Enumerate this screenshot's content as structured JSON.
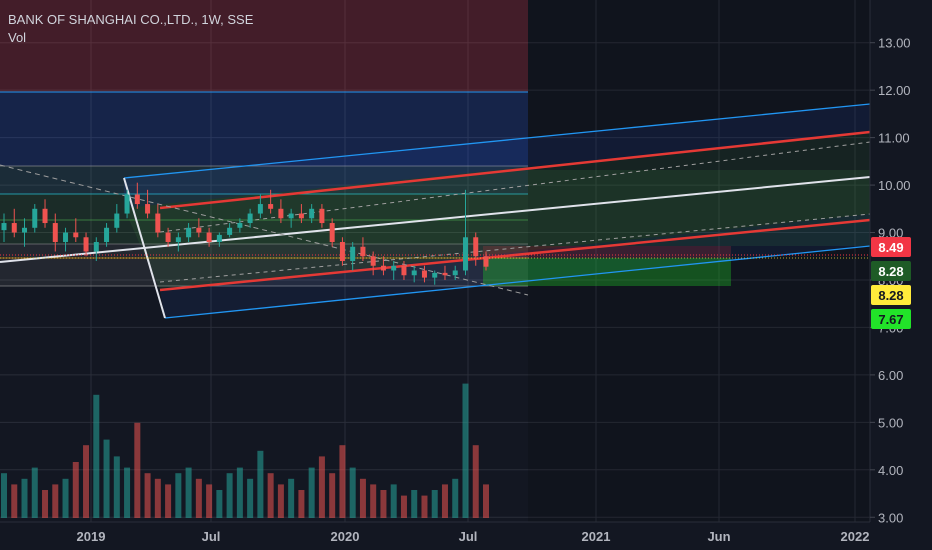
{
  "legend": {
    "title": "BANK OF SHANGHAI CO.,LTD., 1W, SSE",
    "indicator": "Vol"
  },
  "colors": {
    "background": "#131722",
    "grid": "#2a2e39",
    "up": "#26a69a",
    "down": "#ef5350",
    "text": "#b2b5be",
    "channel_blue": "#2962ff",
    "channel_red": "#e53935"
  },
  "chart_data": {
    "type": "candlestick",
    "symbol": "BANK OF SHANGHAI CO.,LTD.",
    "interval": "1W",
    "exchange": "SSE",
    "ylim": [
      2.9,
      13.9
    ],
    "x_ticks": [
      "2019",
      "Jul",
      "2020",
      "Jul",
      "2021",
      "Jun",
      "2022"
    ],
    "y_ticks": [
      "3.00",
      "4.00",
      "5.00",
      "6.00",
      "7.00",
      "8.00",
      "9.00",
      "10.00",
      "11.00",
      "12.00",
      "13.00"
    ],
    "price_tags": [
      {
        "label": "8.49",
        "value": 8.49,
        "bg": "#f23645",
        "fg": "#ffffff"
      },
      {
        "label": "8.28",
        "value": 8.28,
        "bg": "#1e5b26",
        "fg": "#ffffff"
      },
      {
        "label": "8.28",
        "value": 8.28,
        "bg": "#ffeb3b",
        "fg": "#131722"
      },
      {
        "label": "7.67",
        "value": 7.67,
        "bg": "#22e329",
        "fg": "#131722"
      }
    ],
    "price_path": [
      [
        9.05,
        9.4,
        8.8,
        9.2
      ],
      [
        9.2,
        9.5,
        8.9,
        9.0
      ],
      [
        9.0,
        9.3,
        8.7,
        9.1
      ],
      [
        9.1,
        9.6,
        9.0,
        9.5
      ],
      [
        9.5,
        9.7,
        9.1,
        9.2
      ],
      [
        9.2,
        9.4,
        8.6,
        8.8
      ],
      [
        8.8,
        9.1,
        8.6,
        9.0
      ],
      [
        9.0,
        9.3,
        8.8,
        8.9
      ],
      [
        8.9,
        9.0,
        8.5,
        8.6
      ],
      [
        8.6,
        8.9,
        8.4,
        8.8
      ],
      [
        8.8,
        9.2,
        8.7,
        9.1
      ],
      [
        9.1,
        9.6,
        9.0,
        9.4
      ],
      [
        9.4,
        9.9,
        9.3,
        9.8
      ],
      [
        9.8,
        10.05,
        9.5,
        9.6
      ],
      [
        9.6,
        9.9,
        9.3,
        9.4
      ],
      [
        9.4,
        9.6,
        8.9,
        9.0
      ],
      [
        9.0,
        9.1,
        8.7,
        8.8
      ],
      [
        8.8,
        9.0,
        8.6,
        8.9
      ],
      [
        8.9,
        9.2,
        8.8,
        9.1
      ],
      [
        9.1,
        9.3,
        8.9,
        9.0
      ],
      [
        9.0,
        9.1,
        8.7,
        8.8
      ],
      [
        8.8,
        9.0,
        8.7,
        8.95
      ],
      [
        8.95,
        9.2,
        8.9,
        9.1
      ],
      [
        9.1,
        9.3,
        9.0,
        9.2
      ],
      [
        9.2,
        9.5,
        9.1,
        9.4
      ],
      [
        9.4,
        9.8,
        9.3,
        9.6
      ],
      [
        9.6,
        9.9,
        9.4,
        9.5
      ],
      [
        9.5,
        9.7,
        9.2,
        9.3
      ],
      [
        9.3,
        9.5,
        9.1,
        9.4
      ],
      [
        9.4,
        9.6,
        9.2,
        9.3
      ],
      [
        9.3,
        9.6,
        9.2,
        9.5
      ],
      [
        9.5,
        9.6,
        9.1,
        9.2
      ],
      [
        9.2,
        9.3,
        8.7,
        8.8
      ],
      [
        8.8,
        8.9,
        8.3,
        8.4
      ],
      [
        8.4,
        8.8,
        8.2,
        8.7
      ],
      [
        8.7,
        8.9,
        8.4,
        8.5
      ],
      [
        8.5,
        8.6,
        8.1,
        8.3
      ],
      [
        8.3,
        8.5,
        8.1,
        8.2
      ],
      [
        8.2,
        8.4,
        8.0,
        8.3
      ],
      [
        8.3,
        8.4,
        8.0,
        8.1
      ],
      [
        8.1,
        8.3,
        7.95,
        8.2
      ],
      [
        8.2,
        8.3,
        7.95,
        8.05
      ],
      [
        8.05,
        8.2,
        7.9,
        8.15
      ],
      [
        8.15,
        8.3,
        8.0,
        8.1
      ],
      [
        8.1,
        8.3,
        8.0,
        8.2
      ],
      [
        8.2,
        9.9,
        8.1,
        8.9
      ],
      [
        8.9,
        9.0,
        8.3,
        8.5
      ],
      [
        8.5,
        8.6,
        8.2,
        8.28
      ]
    ],
    "volume": [
      0.8,
      0.6,
      0.7,
      0.9,
      0.5,
      0.6,
      0.7,
      1.0,
      1.3,
      2.2,
      1.4,
      1.1,
      0.9,
      1.7,
      0.8,
      0.7,
      0.6,
      0.8,
      0.9,
      0.7,
      0.6,
      0.5,
      0.8,
      0.9,
      0.7,
      1.2,
      0.8,
      0.6,
      0.7,
      0.5,
      0.9,
      1.1,
      0.8,
      1.3,
      0.9,
      0.7,
      0.6,
      0.5,
      0.6,
      0.4,
      0.5,
      0.4,
      0.5,
      0.6,
      0.7,
      2.4,
      1.3,
      0.6
    ]
  }
}
